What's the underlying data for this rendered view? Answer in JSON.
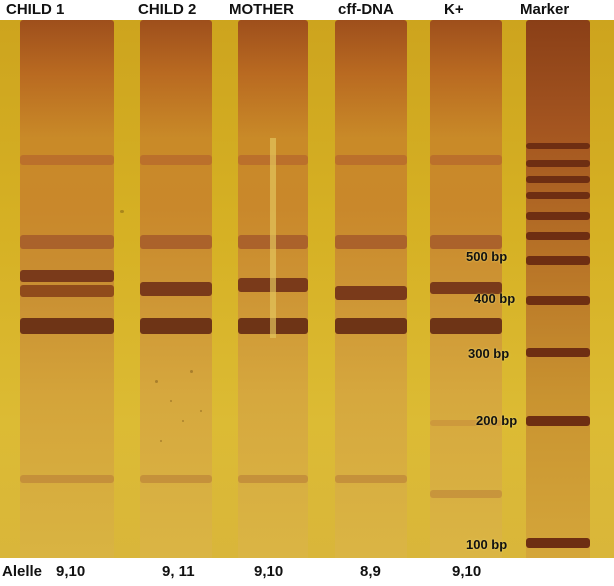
{
  "lanes": [
    {
      "label": "CHILD 1",
      "allele": "9,10"
    },
    {
      "label": "CHILD 2",
      "allele": "9, 11"
    },
    {
      "label": "MOTHER",
      "allele": "9,10"
    },
    {
      "label": "cff-DNA",
      "allele": "8,9"
    },
    {
      "label": "K+",
      "allele": "9,10"
    },
    {
      "label": "Marker",
      "allele": ""
    }
  ],
  "allele_prefix": "Alelle",
  "marker_sizes": [
    "500 bp",
    "400 bp",
    "300 bp",
    "200 bp",
    "100 bp"
  ],
  "colors": {
    "gel": "#d6b124",
    "band": "#7a3a1a",
    "smear": "#b06a1e",
    "marker": "#8a3e18"
  }
}
